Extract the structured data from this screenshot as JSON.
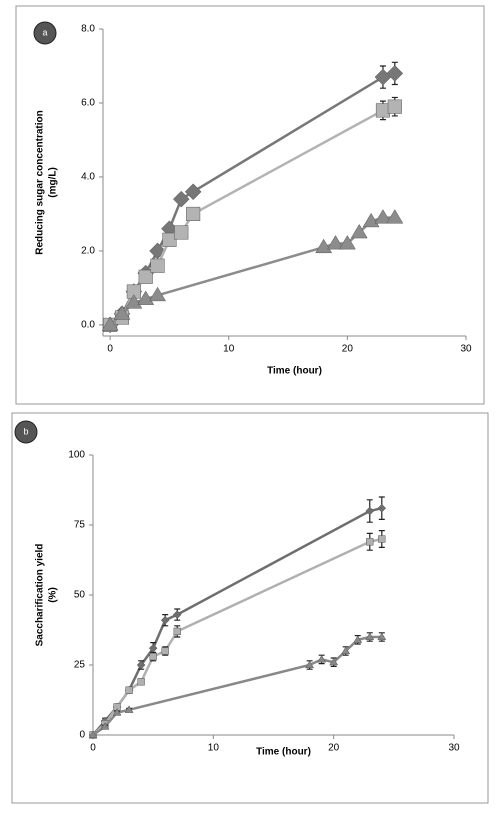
{
  "chart_data": [
    {
      "type": "line",
      "panel_label": "a",
      "y_label": [
        "Reducing sugar concentration",
        "(mg/L)"
      ],
      "x_label": "Time (hour)",
      "xlim": [
        -0.6,
        30
      ],
      "xticks": [
        0,
        10,
        20,
        30
      ],
      "ylim": [
        -0.3,
        8
      ],
      "yticks": [
        {
          "value": 0,
          "label": "0.0"
        },
        {
          "value": 2,
          "label": "2.0"
        },
        {
          "value": 4,
          "label": "4.0"
        },
        {
          "value": 6,
          "label": "6.0"
        },
        {
          "value": 8,
          "label": "8.0"
        }
      ],
      "series": [
        {
          "marker": "diamond",
          "color": "#777777",
          "x": [
            0,
            1,
            2,
            3,
            4,
            5,
            6,
            7,
            23,
            24
          ],
          "values": [
            0,
            0.3,
            0.9,
            1.4,
            2.0,
            2.6,
            3.4,
            3.6,
            6.7,
            6.8
          ],
          "errors": [
            null,
            null,
            null,
            null,
            null,
            null,
            null,
            null,
            0.3,
            0.3
          ]
        },
        {
          "marker": "square",
          "color": "#b3b3b3",
          "x": [
            0,
            1,
            2,
            3,
            4,
            5,
            6,
            7,
            23,
            24
          ],
          "values": [
            0,
            0.2,
            0.9,
            1.3,
            1.6,
            2.3,
            2.5,
            3.0,
            5.8,
            5.9
          ],
          "errors": [
            null,
            null,
            null,
            null,
            null,
            null,
            null,
            null,
            0.25,
            0.25
          ]
        },
        {
          "marker": "triangle",
          "color": "#8c8c8c",
          "x": [
            0,
            1,
            2,
            3,
            4,
            18,
            19,
            20,
            21,
            22,
            23,
            24
          ],
          "values": [
            0,
            0.3,
            0.6,
            0.7,
            0.8,
            2.1,
            2.2,
            2.2,
            2.5,
            2.8,
            2.9,
            2.9
          ],
          "errors": [
            null,
            null,
            null,
            null,
            null,
            null,
            null,
            null,
            null,
            null,
            null,
            null
          ]
        }
      ]
    },
    {
      "type": "line",
      "panel_label": "b",
      "y_label": [
        "Saccharification yield",
        "(%)"
      ],
      "x_label": "Time (hour)",
      "xlim": [
        0,
        30
      ],
      "xticks": [
        0,
        10,
        20,
        30
      ],
      "ylim": [
        0,
        100
      ],
      "yticks": [
        0,
        25,
        50,
        75,
        100
      ],
      "series": [
        {
          "marker": "diamond",
          "color": "#6e6e6e",
          "x": [
            0,
            1,
            2,
            3,
            4,
            5,
            6,
            7,
            23,
            24
          ],
          "values": [
            0,
            5,
            10,
            16,
            25,
            31,
            41,
            43,
            80,
            81
          ],
          "errors": [
            0,
            1,
            1,
            1,
            1.5,
            2,
            2,
            2,
            4,
            4
          ]
        },
        {
          "marker": "square",
          "color": "#b0b0b0",
          "x": [
            0,
            1,
            2,
            3,
            4,
            5,
            6,
            7,
            23,
            24
          ],
          "values": [
            0,
            4,
            10,
            16,
            19,
            28,
            30,
            37,
            69,
            70
          ],
          "errors": [
            0,
            1,
            1,
            1,
            1,
            1.5,
            1.5,
            2,
            3,
            3
          ]
        },
        {
          "marker": "triangle",
          "color": "#888888",
          "x": [
            0,
            1,
            2,
            3,
            18,
            19,
            20,
            21,
            22,
            23,
            24
          ],
          "values": [
            0,
            3,
            8,
            9,
            25,
            27,
            26,
            30,
            34,
            35,
            35
          ],
          "errors": [
            0,
            0.5,
            0.5,
            0.5,
            1.5,
            1.5,
            1.5,
            1.5,
            1.5,
            1.5,
            1.5
          ]
        }
      ]
    }
  ]
}
